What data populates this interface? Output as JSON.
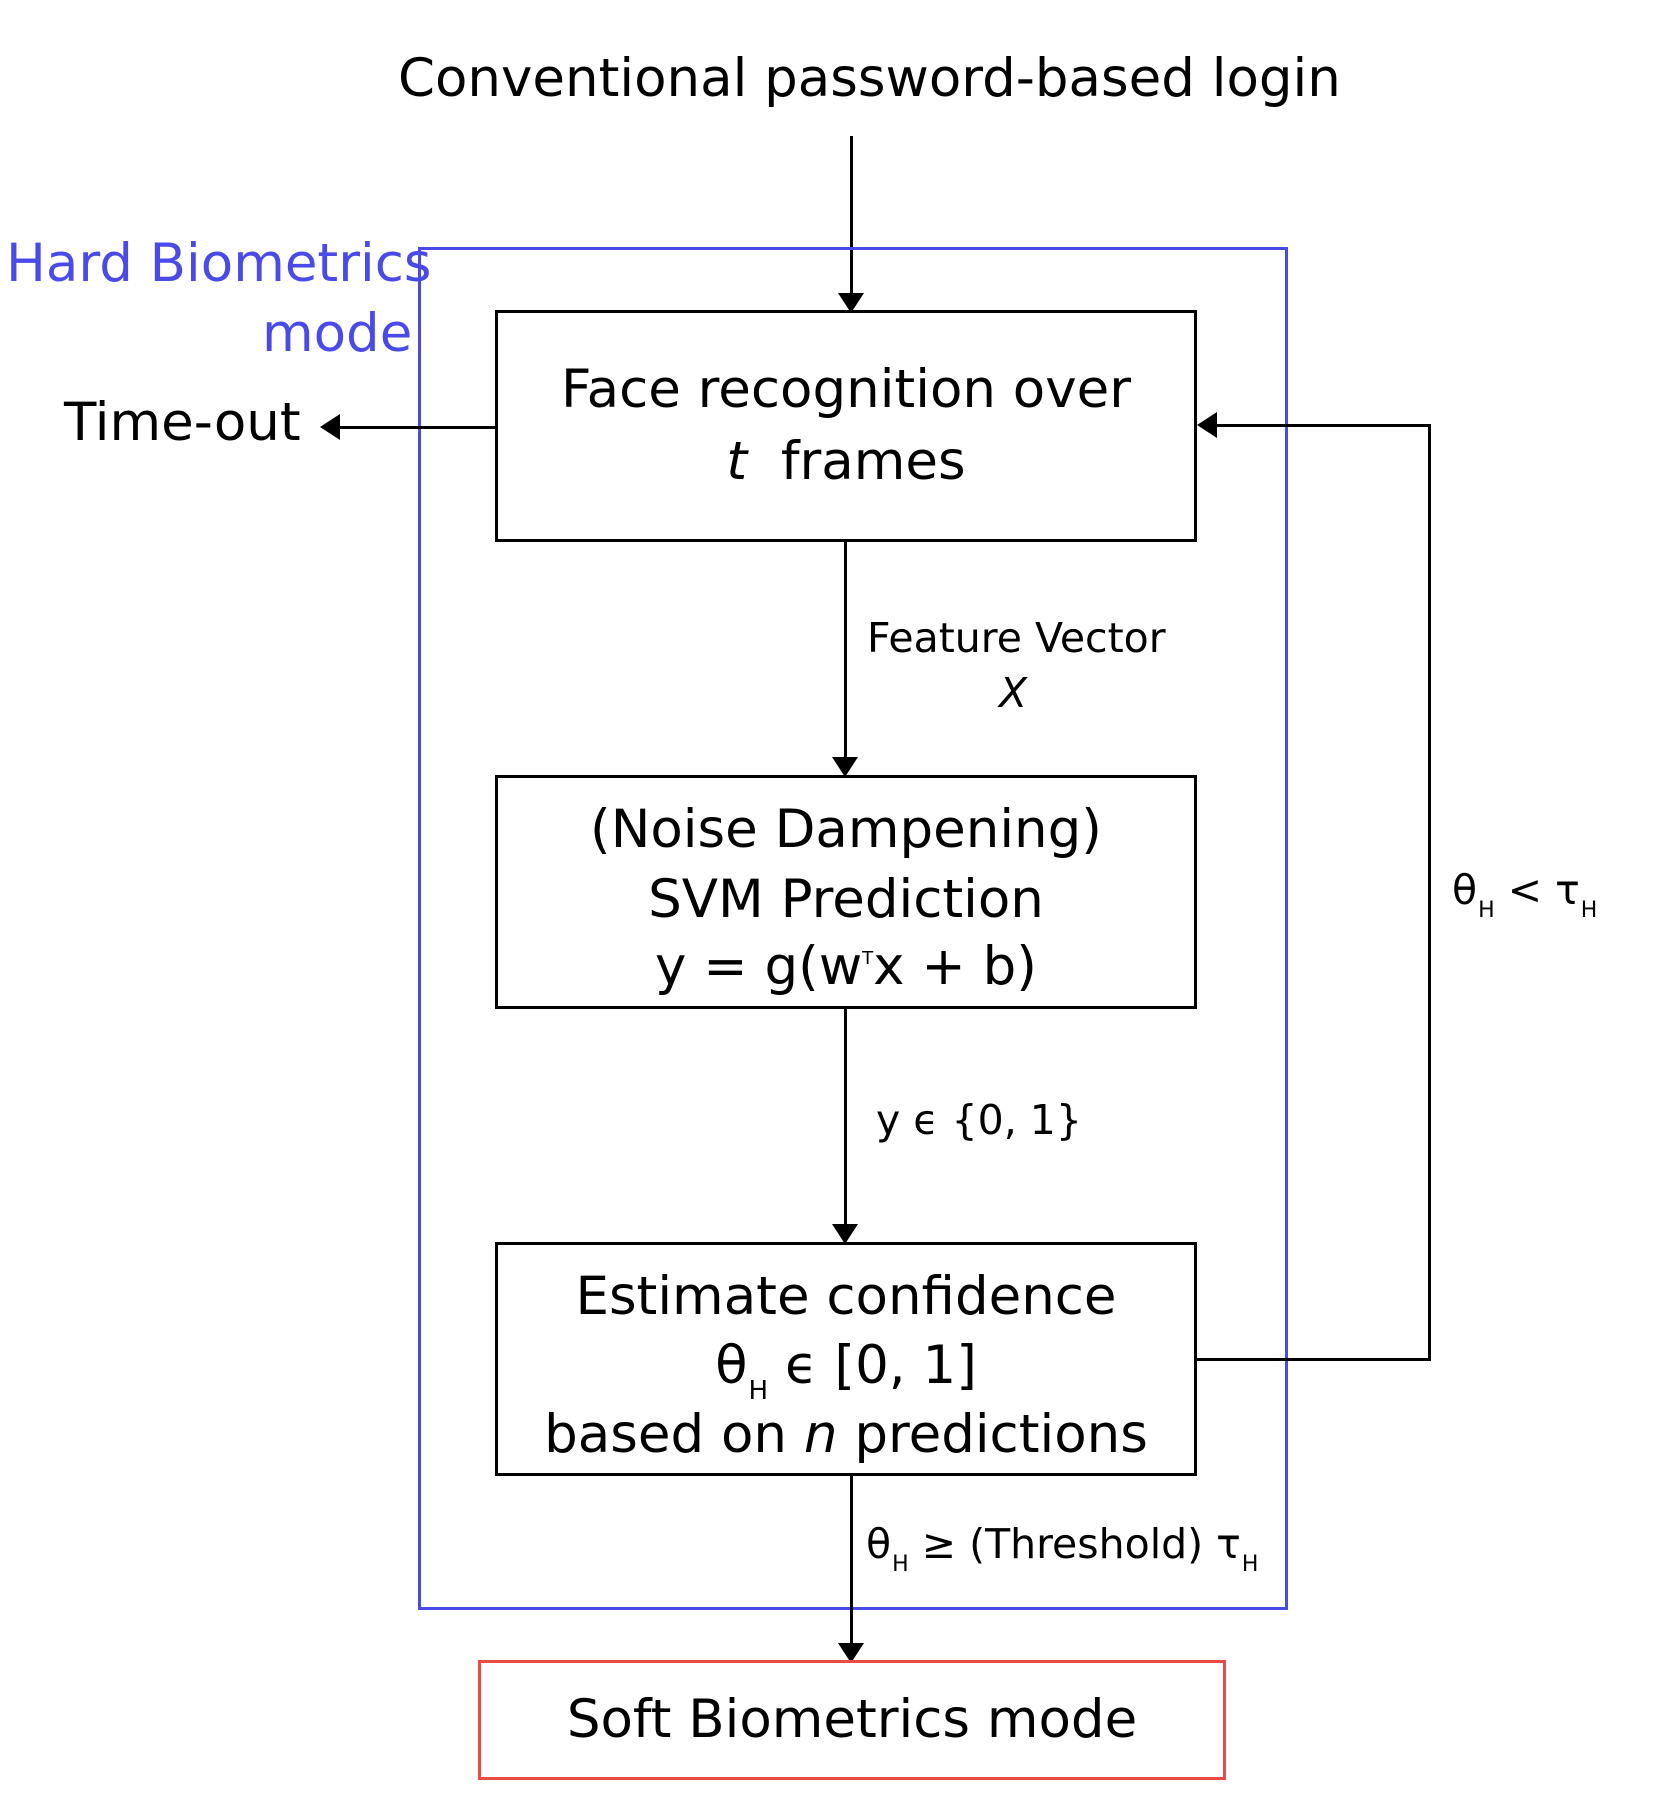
{
  "top_input": "Conventional password-based login",
  "hard_mode": {
    "label_line1": "Hard Biometrics",
    "label_line2": "mode",
    "color": "#4a4ae8"
  },
  "soft_mode": {
    "label": "Soft Biometrics mode",
    "color": "#e84a4a"
  },
  "timeout_label": "Time-out",
  "face_box": {
    "line1": "Face recognition over",
    "line2_var": "t",
    "line2_rest": "frames"
  },
  "feature_label": {
    "line1": "Feature Vector",
    "line2": "X"
  },
  "svm_box": {
    "line1": "(Noise Dampening)",
    "line2": "SVM Prediction",
    "formula_left": "y = g(w",
    "formula_sup": "T",
    "formula_right": "x + b)"
  },
  "y_label": "y ϵ {0, 1}",
  "confidence_box": {
    "line1": "Estimate confidence",
    "theta": "θ",
    "theta_sub": "H",
    "range": "ϵ [0, 1]",
    "line3_pre": "based on",
    "line3_var": "n",
    "line3_post": "predictions"
  },
  "loop_label": {
    "theta": "θ",
    "theta_sub": "H",
    "op": "<",
    "tau": "τ",
    "tau_sub": "H"
  },
  "exit_label": {
    "theta": "θ",
    "theta_sub": "H",
    "text": "≥ (Threshold) τ",
    "tau_sub": "H"
  }
}
